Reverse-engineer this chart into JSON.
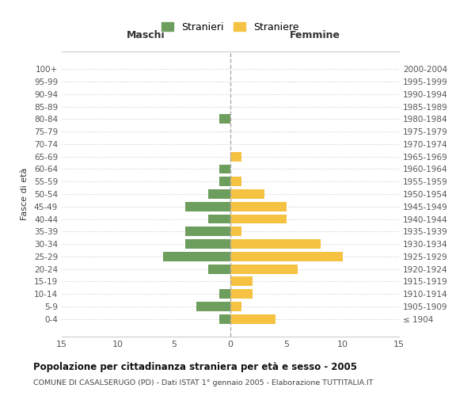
{
  "age_groups": [
    "100+",
    "95-99",
    "90-94",
    "85-89",
    "80-84",
    "75-79",
    "70-74",
    "65-69",
    "60-64",
    "55-59",
    "50-54",
    "45-49",
    "40-44",
    "35-39",
    "30-34",
    "25-29",
    "20-24",
    "15-19",
    "10-14",
    "5-9",
    "0-4"
  ],
  "birth_years": [
    "≤ 1904",
    "1905-1909",
    "1910-1914",
    "1915-1919",
    "1920-1924",
    "1925-1929",
    "1930-1934",
    "1935-1939",
    "1940-1944",
    "1945-1949",
    "1950-1954",
    "1955-1959",
    "1960-1964",
    "1965-1969",
    "1970-1974",
    "1975-1979",
    "1980-1984",
    "1985-1989",
    "1990-1994",
    "1995-1999",
    "2000-2004"
  ],
  "maschi": [
    0,
    0,
    0,
    0,
    1,
    0,
    0,
    0,
    1,
    1,
    2,
    4,
    2,
    4,
    4,
    6,
    2,
    0,
    1,
    3,
    1
  ],
  "femmine": [
    0,
    0,
    0,
    0,
    0,
    0,
    0,
    1,
    0,
    1,
    3,
    5,
    5,
    1,
    8,
    10,
    6,
    2,
    2,
    1,
    4
  ],
  "color_maschi": "#6e9e5e",
  "color_femmine": "#f5c242",
  "title": "Popolazione per cittadinanza straniera per età e sesso - 2005",
  "subtitle": "COMUNE DI CASALSERUGO (PD) - Dati ISTAT 1° gennaio 2005 - Elaborazione TUTTITALIA.IT",
  "ylabel_left": "Fasce di età",
  "xlabel_left": "Maschi",
  "xlabel_right": "Femmine",
  "legend_maschi": "Stranieri",
  "legend_femmine": "Straniere",
  "xlim": 15,
  "background_color": "#ffffff",
  "grid_color": "#cccccc"
}
